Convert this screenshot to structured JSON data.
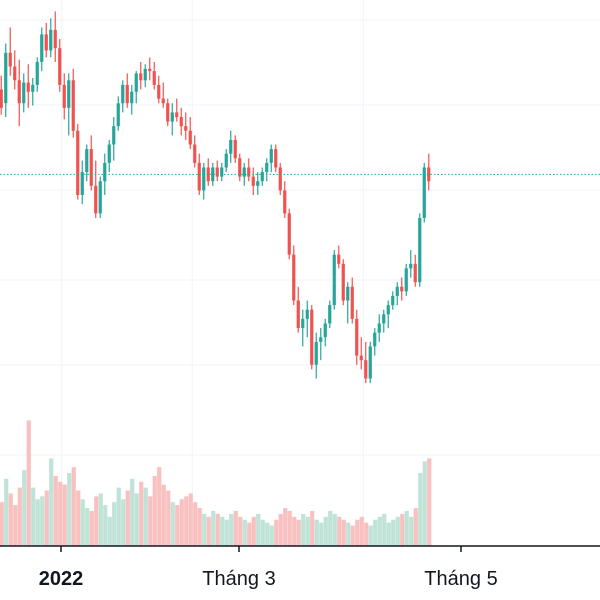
{
  "colors": {
    "up": "#26a69a",
    "down": "#ef5350",
    "up_volume": "#bfe3d6",
    "down_volume": "#f9c0c0",
    "grid": "#f0f3fa",
    "axis": "#131722",
    "reference_line": "#26a69a"
  },
  "chart_data": {
    "type": "candlestick",
    "x_axis": {
      "tick_labels": [
        {
          "label": "2022",
          "index": 9,
          "bold": true
        },
        {
          "label": "Tháng 3",
          "index": 38,
          "bold": false
        },
        {
          "label": "Tháng 5",
          "index": 76,
          "bold": false
        }
      ]
    },
    "price_axis": {
      "min": 0,
      "max": 100
    },
    "volume_axis": {
      "min": 0,
      "max": 100
    },
    "reference_level": 59,
    "grid": true,
    "series": [
      {
        "name": "",
        "ohlc": [
          [
            96,
            102,
            85,
            88
          ],
          [
            90,
            116,
            84,
            112
          ],
          [
            112,
            123,
            102,
            106
          ],
          [
            106,
            113,
            96,
            100
          ],
          [
            100,
            109,
            80,
            90
          ],
          [
            90,
            103,
            86,
            99
          ],
          [
            99,
            107,
            88,
            95
          ],
          [
            95,
            101,
            89,
            98
          ],
          [
            98,
            110,
            95,
            108
          ],
          [
            108,
            123,
            104,
            120
          ],
          [
            120,
            125,
            110,
            113
          ],
          [
            113,
            127,
            110,
            122
          ],
          [
            122,
            130,
            108,
            114
          ],
          [
            114,
            118,
            95,
            98
          ],
          [
            98,
            103,
            83,
            88
          ],
          [
            88,
            103,
            76,
            100
          ],
          [
            100,
            105,
            75,
            78
          ],
          [
            78,
            81,
            48,
            50
          ],
          [
            50,
            65,
            46,
            60
          ],
          [
            60,
            72,
            56,
            70
          ],
          [
            70,
            76,
            52,
            54
          ],
          [
            54,
            65,
            40,
            42
          ],
          [
            42,
            58,
            40,
            56
          ],
          [
            56,
            68,
            50,
            64
          ],
          [
            64,
            74,
            60,
            72
          ],
          [
            72,
            84,
            65,
            80
          ],
          [
            80,
            93,
            78,
            90
          ],
          [
            90,
            100,
            86,
            98
          ],
          [
            98,
            103,
            88,
            90
          ],
          [
            90,
            98,
            85,
            95
          ],
          [
            95,
            104,
            90,
            103
          ],
          [
            103,
            108,
            96,
            100
          ],
          [
            100,
            107,
            97,
            105
          ],
          [
            105,
            110,
            100,
            104
          ],
          [
            104,
            108,
            96,
            98
          ],
          [
            98,
            102,
            90,
            92
          ],
          [
            92,
            99,
            88,
            90
          ],
          [
            90,
            92,
            80,
            82
          ],
          [
            82,
            90,
            76,
            86
          ],
          [
            86,
            92,
            82,
            84
          ],
          [
            84,
            88,
            76,
            80
          ],
          [
            80,
            86,
            74,
            78
          ],
          [
            78,
            84,
            70,
            72
          ],
          [
            72,
            76,
            62,
            64
          ],
          [
            64,
            68,
            50,
            52
          ],
          [
            52,
            64,
            48,
            62
          ],
          [
            62,
            66,
            54,
            56
          ],
          [
            56,
            64,
            54,
            62
          ],
          [
            62,
            65,
            56,
            58
          ],
          [
            58,
            64,
            56,
            62
          ],
          [
            62,
            70,
            60,
            68
          ],
          [
            68,
            78,
            64,
            74
          ],
          [
            74,
            76,
            64,
            66
          ],
          [
            66,
            68,
            56,
            58
          ],
          [
            58,
            64,
            54,
            62
          ],
          [
            62,
            66,
            56,
            58
          ],
          [
            58,
            62,
            50,
            54
          ],
          [
            54,
            60,
            50,
            56
          ],
          [
            56,
            62,
            54,
            60
          ],
          [
            60,
            66,
            56,
            64
          ],
          [
            64,
            72,
            60,
            70
          ],
          [
            70,
            72,
            60,
            62
          ],
          [
            62,
            64,
            50,
            52
          ],
          [
            52,
            56,
            40,
            42
          ],
          [
            42,
            44,
            22,
            24
          ],
          [
            24,
            28,
            2,
            4
          ],
          [
            4,
            10,
            -10,
            -8
          ],
          [
            -8,
            0,
            -16,
            -4
          ],
          [
            -4,
            4,
            -12,
            0
          ],
          [
            0,
            2,
            -26,
            -24
          ],
          [
            -24,
            -10,
            -30,
            -14
          ],
          [
            -14,
            -8,
            -22,
            -12
          ],
          [
            -12,
            -4,
            -16,
            -6
          ],
          [
            -6,
            4,
            -8,
            2
          ],
          [
            2,
            26,
            0,
            24
          ],
          [
            24,
            28,
            18,
            20
          ],
          [
            20,
            22,
            2,
            4
          ],
          [
            4,
            12,
            -6,
            10
          ],
          [
            10,
            14,
            -6,
            -4
          ],
          [
            -4,
            0,
            -24,
            -20
          ],
          [
            -20,
            -12,
            -26,
            -22
          ],
          [
            -22,
            -14,
            -32,
            -30
          ],
          [
            -30,
            -14,
            -32,
            -16
          ],
          [
            -16,
            -8,
            -20,
            -10
          ],
          [
            -10,
            -2,
            -14,
            -6
          ],
          [
            -6,
            0,
            -10,
            -2
          ],
          [
            -2,
            4,
            -8,
            2
          ],
          [
            2,
            8,
            0,
            6
          ],
          [
            6,
            12,
            2,
            10
          ],
          [
            10,
            14,
            4,
            8
          ],
          [
            8,
            20,
            6,
            18
          ],
          [
            18,
            26,
            14,
            20
          ],
          [
            20,
            24,
            10,
            12
          ],
          [
            12,
            42,
            10,
            40
          ],
          [
            40,
            64,
            38,
            62
          ],
          [
            62,
            68,
            52,
            56
          ]
        ],
        "volumes": [
          30,
          46,
          36,
          28,
          40,
          52,
          86,
          40,
          32,
          34,
          38,
          60,
          48,
          44,
          42,
          50,
          54,
          38,
          32,
          26,
          24,
          34,
          36,
          28,
          20,
          30,
          40,
          32,
          38,
          46,
          36,
          44,
          40,
          34,
          48,
          54,
          42,
          38,
          30,
          28,
          32,
          34,
          36,
          30,
          26,
          22,
          20,
          24,
          22,
          20,
          18,
          22,
          24,
          20,
          18,
          16,
          20,
          22,
          18,
          16,
          14,
          18,
          22,
          26,
          24,
          20,
          18,
          22,
          20,
          24,
          18,
          16,
          20,
          24,
          22,
          20,
          18,
          16,
          14,
          18,
          20,
          16,
          14,
          18,
          20,
          22,
          16,
          18,
          20,
          22,
          24,
          20,
          26,
          50,
          58,
          60
        ]
      }
    ]
  }
}
